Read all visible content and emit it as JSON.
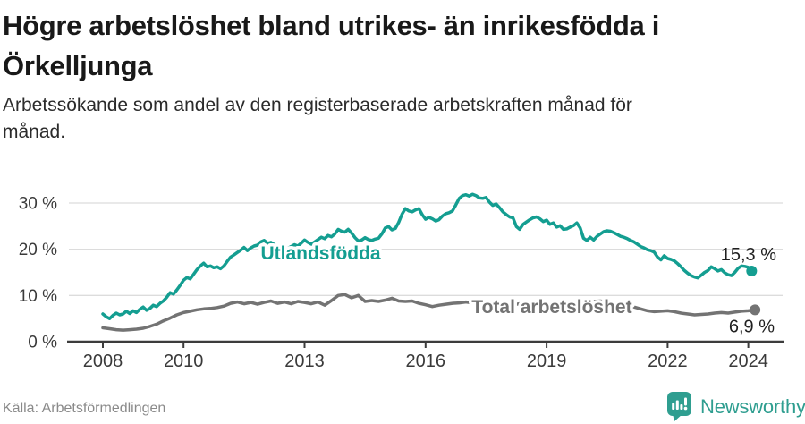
{
  "chart_data": {
    "type": "line",
    "title": "Högre arbetslöshet bland utrikes- än inrikesfödda i Örkelljunga",
    "title_lines": [
      "Högre arbetslöshet bland utrikes- än inrikesfödda i",
      "Örkelljunga"
    ],
    "subtitle": "Arbetssökande som andel av den registerbaserade arbetskraften månad för månad.",
    "subtitle_lines": [
      "Arbetssökande som andel av den registerbaserade arbetskraften månad för",
      "månad."
    ],
    "unit": "%",
    "grid": "horizontal",
    "xlim": [
      2008,
      2024.6
    ],
    "ylim": [
      0,
      33
    ],
    "x_ticks": [
      2008,
      2010,
      2013,
      2016,
      2019,
      2022,
      2024
    ],
    "y_ticks": [
      {
        "value": 0,
        "label": "0 %"
      },
      {
        "value": 10,
        "label": "10 %"
      },
      {
        "value": 20,
        "label": "20 %"
      },
      {
        "value": 30,
        "label": "30 %"
      }
    ],
    "series": [
      {
        "name": "Utlandsfödda",
        "color": "#149e91",
        "end_label": "15,3 %",
        "end_value": 15.3,
        "label_pos": [
          2013.4,
          17.8
        ],
        "start_year": 2008.0,
        "step": 0.08333,
        "values": [
          6.0,
          5.4,
          5.0,
          5.7,
          6.2,
          5.8,
          6.0,
          6.6,
          6.1,
          6.7,
          6.3,
          7.0,
          7.5,
          6.8,
          7.2,
          7.9,
          7.6,
          8.3,
          8.8,
          9.6,
          10.6,
          10.3,
          11.2,
          12.2,
          13.3,
          13.9,
          13.6,
          14.6,
          15.6,
          16.4,
          17.0,
          16.2,
          16.4,
          16.0,
          16.2,
          15.8,
          16.4,
          17.4,
          18.3,
          18.8,
          19.3,
          19.8,
          20.4,
          19.7,
          20.3,
          20.7,
          20.9,
          21.6,
          21.9,
          21.3,
          21.5,
          21.0,
          20.6,
          20.3,
          20.5,
          20.2,
          20.6,
          21.0,
          20.7,
          21.3,
          22.0,
          21.5,
          21.1,
          21.6,
          22.1,
          22.6,
          22.3,
          23.0,
          22.7,
          23.3,
          24.3,
          23.9,
          23.7,
          24.3,
          23.5,
          22.5,
          21.8,
          22.0,
          22.5,
          22.1,
          21.9,
          22.2,
          22.4,
          23.3,
          24.6,
          24.9,
          24.2,
          24.5,
          25.8,
          27.6,
          28.8,
          28.3,
          28.1,
          28.5,
          28.8,
          27.5,
          26.5,
          26.9,
          26.6,
          26.1,
          26.4,
          27.2,
          27.7,
          27.9,
          28.3,
          29.6,
          31.0,
          31.6,
          31.8,
          31.5,
          31.9,
          31.6,
          31.1,
          31.0,
          31.2,
          30.2,
          29.5,
          29.8,
          29.0,
          28.1,
          27.5,
          27.0,
          26.8,
          24.9,
          24.3,
          25.4,
          25.9,
          26.4,
          26.8,
          27.0,
          26.6,
          26.0,
          26.3,
          25.4,
          25.7,
          24.8,
          25.1,
          24.3,
          24.4,
          24.8,
          25.1,
          25.7,
          24.6,
          22.4,
          21.9,
          22.6,
          22.0,
          22.8,
          23.3,
          23.8,
          24.0,
          23.9,
          23.6,
          23.2,
          22.8,
          22.6,
          22.3,
          21.9,
          21.6,
          21.1,
          20.6,
          20.3,
          19.9,
          19.7,
          19.4,
          18.3,
          17.7,
          18.6,
          18.0,
          17.8,
          17.5,
          16.9,
          16.2,
          15.4,
          14.8,
          14.3,
          14.0,
          13.8,
          14.4,
          15.0,
          15.4,
          16.2,
          15.8,
          15.3,
          15.6,
          14.9,
          14.5,
          14.3,
          15.0,
          15.9,
          16.4,
          16.3,
          16.1,
          15.3
        ]
      },
      {
        "name": "Total arbetslöshet",
        "color": "#737373",
        "end_label": "6,9 %",
        "end_value": 6.9,
        "label_pos": [
          2019.13,
          6.2
        ],
        "start_year": 2008.0,
        "step": 0.16667,
        "values": [
          3.0,
          2.8,
          2.6,
          2.5,
          2.6,
          2.7,
          2.9,
          3.3,
          3.8,
          4.5,
          5.1,
          5.8,
          6.3,
          6.6,
          6.9,
          7.1,
          7.2,
          7.4,
          7.7,
          8.3,
          8.6,
          8.2,
          8.5,
          8.1,
          8.5,
          8.8,
          8.3,
          8.6,
          8.2,
          8.7,
          8.5,
          8.2,
          8.6,
          7.9,
          8.9,
          10.0,
          10.2,
          9.5,
          10.0,
          8.7,
          8.9,
          8.7,
          9.0,
          9.4,
          8.8,
          8.7,
          8.8,
          8.3,
          8.0,
          7.6,
          7.9,
          8.1,
          8.3,
          8.4,
          8.6,
          8.4,
          8.5,
          8.3,
          8.5,
          8.2,
          8.3,
          8.0,
          8.2,
          7.9,
          8.1,
          7.9,
          8.0,
          7.8,
          8.0,
          8.2,
          8.4,
          8.3,
          8.5,
          8.7,
          8.8,
          8.6,
          8.4,
          8.2,
          7.9,
          7.5,
          7.1,
          6.7,
          6.5,
          6.6,
          6.7,
          6.5,
          6.2,
          6.0,
          5.8,
          5.9,
          6.0,
          6.2,
          6.3,
          6.2,
          6.4,
          6.6,
          6.7,
          6.9
        ]
      }
    ]
  },
  "footer": {
    "source": "Källa: Arbetsförmedlingen",
    "brand": "Newsworthy",
    "brand_icon": "newsworthy-chart-bubble-icon"
  },
  "colors": {
    "accent_teal": "#149e91",
    "line_gray": "#737373",
    "grid_gray": "#dcdcdc",
    "axis_dark": "#3c3c3c",
    "text_dark": "#191919",
    "text_muted": "#8a8a8a",
    "brand_teal": "#2f9e90"
  }
}
